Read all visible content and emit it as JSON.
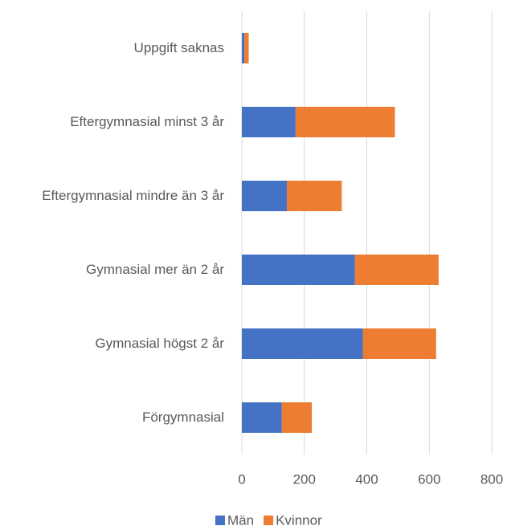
{
  "chart_data": {
    "type": "stacked-bar-horizontal",
    "categories": [
      "Uppgift saknas",
      "Eftergymnasial minst 3 år",
      "Eftergymnasial mindre än 3 år",
      "Gymnasial mer än 2 år",
      "Gymnasial högst 2 år",
      "Förgymnasial"
    ],
    "series": [
      {
        "name": "Män",
        "color": "#4472c4",
        "values": [
          8,
          172,
          144,
          362,
          388,
          128
        ]
      },
      {
        "name": "Kvinnor",
        "color": "#ed7d31",
        "values": [
          14,
          318,
          176,
          268,
          234,
          96
        ]
      }
    ],
    "xlim": [
      0,
      800
    ],
    "xticks": [
      0,
      200,
      400,
      600,
      800
    ],
    "grid": true,
    "legend": "bottom"
  }
}
